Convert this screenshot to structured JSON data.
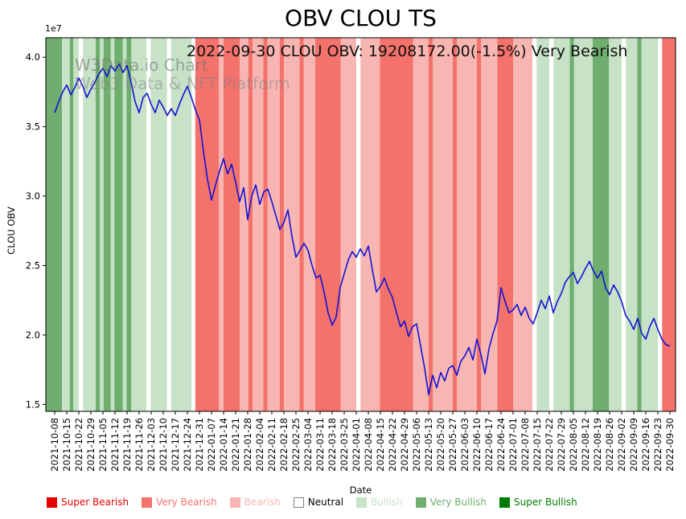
{
  "title": "OBV CLOU TS",
  "annotation": "2022-09-30 CLOU OBV: 19208172.00(-1.5%) Very Bearish",
  "watermark": {
    "line1": "W3Data.io Chart",
    "line2": "Web3 Data & NFT Platform"
  },
  "axes": {
    "ylabel": "CLOU OBV",
    "xlabel": "Date",
    "offset_text": "1e7"
  },
  "legend": [
    {
      "label": "Super Bearish",
      "color": "#e60000",
      "text_color": "#e60000"
    },
    {
      "label": "Very Bearish",
      "color": "#f4726c",
      "text_color": "#f4726c"
    },
    {
      "label": "Bearish",
      "color": "#f8b6b2",
      "text_color": "#f8b6b2"
    },
    {
      "label": "Neutral",
      "color": "#ffffff",
      "text_color": "#000000"
    },
    {
      "label": "Bullish",
      "color": "#c7e2c7",
      "text_color": "#c7e2c7"
    },
    {
      "label": "Very Bullish",
      "color": "#6fae6f",
      "text_color": "#6fae6f"
    },
    {
      "label": "Super Bullish",
      "color": "#007d00",
      "text_color": "#007d00"
    }
  ],
  "chart_data": {
    "type": "line",
    "title": "OBV CLOU TS",
    "xlabel": "Date",
    "ylabel": "CLOU OBV",
    "y_scale": "1e7",
    "yticks": [
      1.5,
      2.0,
      2.5,
      3.0,
      3.5,
      4.0
    ],
    "ylim": [
      1.45,
      4.14
    ],
    "x_range_weeks": [
      0,
      51
    ],
    "x_tick_labels": [
      "2021-10-08",
      "2021-10-15",
      "2021-10-22",
      "2021-10-29",
      "2021-11-05",
      "2021-11-12",
      "2021-11-19",
      "2021-11-26",
      "2021-12-03",
      "2021-12-10",
      "2021-12-17",
      "2021-12-24",
      "2021-12-31",
      "2022-01-07",
      "2022-01-14",
      "2022-01-21",
      "2022-01-28",
      "2022-02-04",
      "2022-02-11",
      "2022-02-18",
      "2022-02-25",
      "2022-03-04",
      "2022-03-11",
      "2022-03-18",
      "2022-03-25",
      "2022-04-01",
      "2022-04-08",
      "2022-04-15",
      "2022-04-22",
      "2022-04-29",
      "2022-05-06",
      "2022-05-13",
      "2022-05-20",
      "2022-05-27",
      "2022-06-03",
      "2022-06-10",
      "2022-06-17",
      "2022-06-24",
      "2022-07-01",
      "2022-07-08",
      "2022-07-15",
      "2022-07-22",
      "2022-07-29",
      "2022-08-05",
      "2022-08-12",
      "2022-08-19",
      "2022-08-26",
      "2022-09-02",
      "2022-09-09",
      "2022-09-16",
      "2022-09-23",
      "2022-09-30"
    ],
    "series": [
      {
        "name": "CLOU OBV",
        "color": "#1212d6",
        "latest_value": 19208172.0,
        "latest_change_pct": -1.5,
        "latest_signal": "Very Bearish",
        "values_1e7": [
          3.6,
          3.68,
          3.75,
          3.8,
          3.73,
          3.78,
          3.85,
          3.79,
          3.71,
          3.77,
          3.82,
          3.88,
          3.92,
          3.86,
          3.94,
          3.9,
          3.95,
          3.89,
          3.94,
          3.82,
          3.68,
          3.6,
          3.71,
          3.74,
          3.66,
          3.6,
          3.69,
          3.64,
          3.58,
          3.63,
          3.58,
          3.66,
          3.73,
          3.79,
          3.71,
          3.62,
          3.55,
          3.32,
          3.12,
          2.97,
          3.08,
          3.18,
          3.27,
          3.16,
          3.23,
          3.1,
          2.96,
          3.06,
          2.83,
          3.0,
          3.08,
          2.94,
          3.03,
          3.05,
          2.96,
          2.86,
          2.76,
          2.81,
          2.9,
          2.71,
          2.56,
          2.61,
          2.66,
          2.61,
          2.5,
          2.41,
          2.43,
          2.31,
          2.16,
          2.07,
          2.13,
          2.34,
          2.44,
          2.54,
          2.6,
          2.56,
          2.62,
          2.57,
          2.64,
          2.47,
          2.31,
          2.35,
          2.41,
          2.33,
          2.27,
          2.16,
          2.06,
          2.1,
          1.99,
          2.06,
          2.08,
          1.92,
          1.76,
          1.57,
          1.71,
          1.62,
          1.73,
          1.67,
          1.76,
          1.78,
          1.71,
          1.81,
          1.85,
          1.91,
          1.82,
          1.97,
          1.86,
          1.72,
          1.9,
          2.01,
          2.1,
          2.34,
          2.24,
          2.16,
          2.18,
          2.22,
          2.14,
          2.2,
          2.12,
          2.08,
          2.16,
          2.25,
          2.19,
          2.28,
          2.16,
          2.24,
          2.3,
          2.38,
          2.42,
          2.45,
          2.37,
          2.42,
          2.48,
          2.53,
          2.46,
          2.41,
          2.46,
          2.34,
          2.29,
          2.36,
          2.31,
          2.24,
          2.14,
          2.1,
          2.04,
          2.12,
          2.01,
          1.97,
          2.06,
          2.12,
          2.04,
          1.97,
          1.93,
          1.92
        ]
      }
    ],
    "sentiment_colors": {
      "super_bearish": "#e60000",
      "very_bearish": "#f4726c",
      "bearish": "#f8b6b2",
      "neutral": "#ffffff",
      "bullish": "#c7e2c7",
      "very_bullish": "#6fae6f",
      "super_bullish": "#007d00"
    },
    "bands": [
      [
        -0.75,
        0.6,
        "very_bullish"
      ],
      [
        0.6,
        1.25,
        "bullish"
      ],
      [
        1.25,
        1.55,
        "very_bullish"
      ],
      [
        1.55,
        2.0,
        "bullish"
      ],
      [
        2.0,
        2.35,
        "neutral"
      ],
      [
        2.35,
        3.4,
        "bullish"
      ],
      [
        3.4,
        3.75,
        "very_bullish"
      ],
      [
        3.75,
        4.05,
        "bullish"
      ],
      [
        4.05,
        4.65,
        "very_bullish"
      ],
      [
        4.65,
        4.95,
        "bullish"
      ],
      [
        4.95,
        5.65,
        "very_bullish"
      ],
      [
        5.65,
        5.95,
        "bullish"
      ],
      [
        5.95,
        6.35,
        "very_bullish"
      ],
      [
        6.35,
        7.6,
        "bullish"
      ],
      [
        7.6,
        7.95,
        "neutral"
      ],
      [
        7.95,
        9.3,
        "bullish"
      ],
      [
        9.3,
        9.65,
        "neutral"
      ],
      [
        9.65,
        11.35,
        "bullish"
      ],
      [
        11.35,
        11.65,
        "neutral"
      ],
      [
        11.65,
        13.6,
        "very_bearish"
      ],
      [
        13.6,
        14.0,
        "bearish"
      ],
      [
        14.0,
        15.35,
        "very_bearish"
      ],
      [
        15.35,
        16.05,
        "bearish"
      ],
      [
        16.05,
        16.4,
        "very_bearish"
      ],
      [
        16.4,
        17.3,
        "bearish"
      ],
      [
        17.3,
        17.65,
        "very_bearish"
      ],
      [
        17.65,
        18.65,
        "bearish"
      ],
      [
        18.65,
        19.0,
        "very_bearish"
      ],
      [
        19.0,
        20.3,
        "bearish"
      ],
      [
        20.3,
        20.65,
        "very_bearish"
      ],
      [
        20.65,
        21.6,
        "bearish"
      ],
      [
        21.6,
        23.7,
        "very_bearish"
      ],
      [
        23.7,
        25.0,
        "bearish"
      ],
      [
        25.0,
        25.35,
        "neutral"
      ],
      [
        25.35,
        26.95,
        "bearish"
      ],
      [
        26.95,
        29.7,
        "very_bearish"
      ],
      [
        29.7,
        31.0,
        "bearish"
      ],
      [
        31.0,
        31.35,
        "very_bearish"
      ],
      [
        31.35,
        33.0,
        "bearish"
      ],
      [
        33.0,
        33.35,
        "very_bearish"
      ],
      [
        33.35,
        35.0,
        "bearish"
      ],
      [
        35.0,
        35.35,
        "very_bearish"
      ],
      [
        35.35,
        36.7,
        "bearish"
      ],
      [
        36.7,
        38.0,
        "very_bearish"
      ],
      [
        38.0,
        39.6,
        "bearish"
      ],
      [
        39.6,
        39.95,
        "neutral"
      ],
      [
        39.95,
        41.0,
        "bullish"
      ],
      [
        41.0,
        41.35,
        "neutral"
      ],
      [
        41.35,
        42.7,
        "bullish"
      ],
      [
        42.7,
        43.05,
        "very_bullish"
      ],
      [
        43.05,
        44.6,
        "bullish"
      ],
      [
        44.6,
        45.95,
        "very_bullish"
      ],
      [
        45.95,
        47.0,
        "bullish"
      ],
      [
        47.0,
        47.35,
        "neutral"
      ],
      [
        47.35,
        48.3,
        "bullish"
      ],
      [
        48.3,
        48.65,
        "very_bullish"
      ],
      [
        48.65,
        50.0,
        "bullish"
      ],
      [
        50.0,
        50.35,
        "neutral"
      ],
      [
        50.35,
        51.5,
        "very_bearish"
      ]
    ],
    "legend_position": "bottom",
    "grid": false
  }
}
